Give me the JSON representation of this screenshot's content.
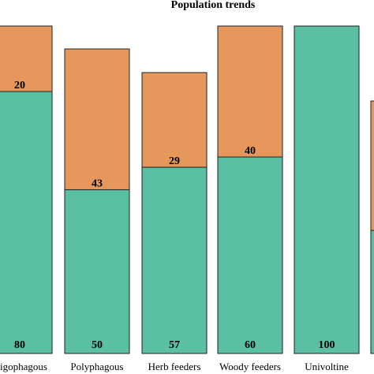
{
  "chart_data": {
    "type": "bar",
    "stacked": true,
    "percent": true,
    "title": "Population trends",
    "xlabel": "",
    "ylabel": "",
    "ylim": [
      0,
      100
    ],
    "categories": [
      "Oligophagous",
      "Polyphagous",
      "Herb feeders",
      "Woody feeders",
      "Univoltine",
      ""
    ],
    "category_labels_visible": [
      "igophagous",
      "Polyphagous",
      "Herb feeders",
      "Woody feeders",
      "Univoltine",
      ""
    ],
    "series": [
      {
        "values": [
          80,
          50,
          57,
          60,
          100,
          38
        ],
        "color": "#5bbfa3"
      },
      {
        "values": [
          20,
          43,
          29,
          40,
          0,
          40
        ],
        "color": "#e6975c"
      }
    ],
    "value_labels": {
      "bottom": [
        "80",
        "50",
        "57",
        "60",
        "100",
        ""
      ],
      "top": [
        "20",
        "43",
        "29",
        "40",
        "",
        ""
      ]
    },
    "legend": "none",
    "grid": false
  }
}
